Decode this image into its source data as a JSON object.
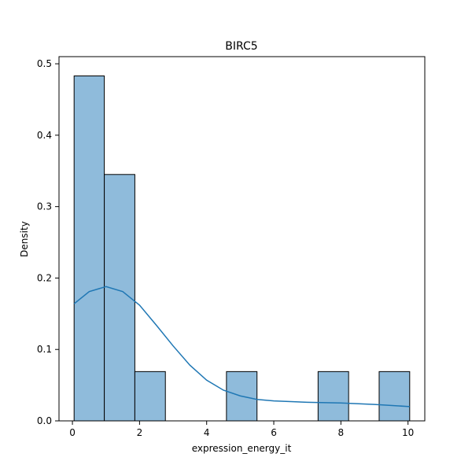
{
  "chart_data": {
    "type": "bar",
    "title": "BIRC5",
    "xlabel": "expression_energy_it",
    "ylabel": "Density",
    "xlim": [
      -0.4,
      10.5
    ],
    "ylim": [
      0,
      0.51
    ],
    "x_ticks": [
      0,
      2,
      4,
      6,
      8,
      10
    ],
    "y_ticks": [
      0.0,
      0.1,
      0.2,
      0.3,
      0.4,
      0.5
    ],
    "x_tick_labels": [
      "0",
      "2",
      "4",
      "6",
      "8",
      "10"
    ],
    "y_tick_labels": [
      "0.0",
      "0.1",
      "0.2",
      "0.3",
      "0.4",
      "0.5"
    ],
    "bins": [
      {
        "x0": 0.05,
        "x1": 0.95,
        "value": 0.483
      },
      {
        "x0": 0.95,
        "x1": 1.86,
        "value": 0.345
      },
      {
        "x0": 1.86,
        "x1": 2.77,
        "value": 0.069
      },
      {
        "x0": 2.77,
        "x1": 3.68,
        "value": 0.0
      },
      {
        "x0": 3.68,
        "x1": 4.59,
        "value": 0.0
      },
      {
        "x0": 4.59,
        "x1": 5.5,
        "value": 0.069
      },
      {
        "x0": 5.5,
        "x1": 6.41,
        "value": 0.0
      },
      {
        "x0": 6.41,
        "x1": 7.32,
        "value": 0.0
      },
      {
        "x0": 7.32,
        "x1": 8.23,
        "value": 0.069
      },
      {
        "x0": 8.23,
        "x1": 9.14,
        "value": 0.0
      },
      {
        "x0": 9.14,
        "x1": 10.05,
        "value": 0.069
      }
    ],
    "kde": {
      "x": [
        0.05,
        0.5,
        1.0,
        1.5,
        2.0,
        2.5,
        3.0,
        3.5,
        4.0,
        4.5,
        5.0,
        5.5,
        6.0,
        7.0,
        8.0,
        9.0,
        10.05
      ],
      "y": [
        0.164,
        0.181,
        0.188,
        0.181,
        0.162,
        0.134,
        0.105,
        0.078,
        0.057,
        0.043,
        0.035,
        0.03,
        0.028,
        0.026,
        0.025,
        0.023,
        0.02
      ]
    },
    "grid": false,
    "colors": {
      "bar_fill": "#8fbbdb",
      "bar_edge": "#000000",
      "kde_line": "#1f77b4",
      "axes": "#000000"
    }
  }
}
